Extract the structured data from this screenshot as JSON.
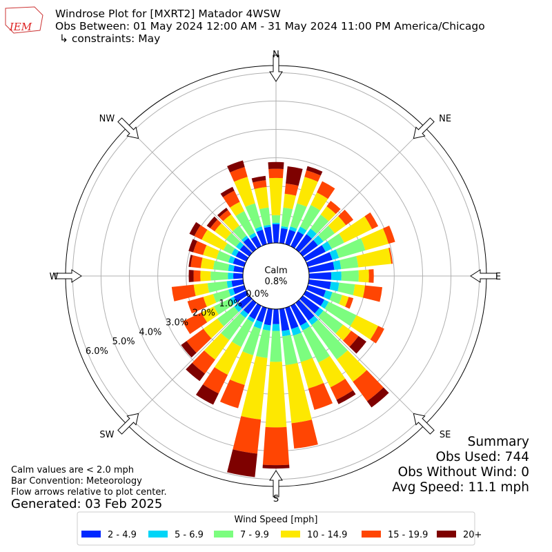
{
  "chart_data": {
    "type": "windrose",
    "logo_text": "IEM",
    "title": "Windrose Plot for [MXRT2] Matador 4WSW",
    "subtitle": "Obs Between: 01 May 2024 12:00 AM - 31 May 2024 11:00 PM America/Chicago",
    "constraints": "↳ constraints: May",
    "calm_label": "Calm",
    "calm_value": "0.8%",
    "notes": [
      "Calm values are < 2.0 mph",
      "Bar Convention: Meteorology",
      "Flow arrows relative to plot center."
    ],
    "generated": "Generated: 03 Feb 2025",
    "summary": [
      "Summary",
      "Obs Used: 744",
      "Obs Without Wind: 0",
      "Avg Speed: 11.1 mph"
    ],
    "legend_title": "Wind Speed [mph]",
    "x": [
      0,
      10,
      20,
      30,
      40,
      50,
      60,
      70,
      80,
      90,
      100,
      110,
      120,
      130,
      140,
      150,
      160,
      170,
      180,
      190,
      200,
      210,
      220,
      230,
      240,
      250,
      260,
      270,
      280,
      290,
      300,
      310,
      320,
      330,
      340,
      350
    ],
    "xticks": [
      {
        "value": 0,
        "label": "N"
      },
      {
        "value": 45,
        "label": "NE"
      },
      {
        "value": 90,
        "label": "E"
      },
      {
        "value": 135,
        "label": "SE"
      },
      {
        "value": 180,
        "label": "S"
      },
      {
        "value": 225,
        "label": "SW"
      },
      {
        "value": 270,
        "label": "W"
      },
      {
        "value": 315,
        "label": "NW"
      }
    ],
    "ylim": [
      0,
      6.25
    ],
    "yticks": [
      {
        "value": 0,
        "label": "0.0%"
      },
      {
        "value": 1,
        "label": "1.0%"
      },
      {
        "value": 2,
        "label": "2.0%"
      },
      {
        "value": 3,
        "label": "3.0%"
      },
      {
        "value": 4,
        "label": "4.0%"
      },
      {
        "value": 5,
        "label": "5.0%"
      },
      {
        "value": 6,
        "label": "6.0%"
      }
    ],
    "grid": true,
    "series": [
      {
        "name": "2 - 4.9",
        "color": "#0028ff",
        "values": [
          0.66,
          0.53,
          0.53,
          0.58,
          0.66,
          0.66,
          0.78,
          0.9,
          0.9,
          0.78,
          0.78,
          0.66,
          0.73,
          0.73,
          0.78,
          0.78,
          0.78,
          0.78,
          0.53,
          0.58,
          0.53,
          0.53,
          0.49,
          0.49,
          0.49,
          0.41,
          0.41,
          0.34,
          0.34,
          0.41,
          0.41,
          0.41,
          0.49,
          0.41,
          0.53,
          0.58
        ]
      },
      {
        "name": "5 - 6.9",
        "color": "#00d5f7",
        "values": [
          0.05,
          0.07,
          0.12,
          0.19,
          0.24,
          0.24,
          0.24,
          0.24,
          0.24,
          0.36,
          0.29,
          0.24,
          0.17,
          0.17,
          0.19,
          0.19,
          0.24,
          0.19,
          0.24,
          0.19,
          0.24,
          0.12,
          0.17,
          0.17,
          0.17,
          0.17,
          0.17,
          0.19,
          0.19,
          0.17,
          0.17,
          0.17,
          0.1,
          0.12,
          0.12,
          0.07
        ]
      },
      {
        "name": "7 - 9.9",
        "color": "#7cfd7f",
        "values": [
          0.27,
          0.66,
          0.85,
          0.85,
          0.61,
          0.49,
          0.49,
          0.97,
          0.61,
          0.61,
          0.56,
          0.36,
          1.09,
          0.85,
          1.5,
          1.26,
          0.97,
          1.02,
          1.09,
          0.97,
          0.97,
          0.97,
          0.97,
          0.73,
          0.61,
          0.56,
          0.68,
          0.61,
          0.53,
          0.44,
          0.32,
          0.44,
          0.44,
          0.85,
          0.85,
          0.61
        ]
      },
      {
        "name": "10 - 14.9",
        "color": "#fde801",
        "values": [
          1.31,
          0.49,
          0.97,
          0.49,
          0.36,
          0.49,
          1.09,
          0.85,
          1.17,
          0.36,
          0.36,
          0.24,
          0.85,
          0.36,
          0.97,
          0.97,
          0.97,
          2.06,
          2.31,
          2.18,
          1.09,
          1.09,
          0.85,
          0.61,
          0.49,
          0.36,
          0.49,
          0.36,
          0.44,
          0.49,
          0.85,
          0.49,
          0.49,
          0.36,
          0.97,
          0.73
        ]
      },
      {
        "name": "15 - 19.9",
        "color": "#ff4503",
        "values": [
          0.32,
          0.36,
          0.24,
          0.44,
          0.24,
          0.32,
          0.24,
          0.24,
          0.05,
          0.17,
          0.61,
          0.17,
          0.24,
          0.32,
          0.85,
          0.49,
          0.78,
          0.9,
          1.33,
          1.21,
          0.85,
          0.73,
          0.61,
          0.73,
          0.73,
          0.58,
          0.78,
          0.24,
          0.36,
          0.36,
          0.29,
          0.19,
          0.19,
          0.44,
          0.36,
          0.24
        ]
      },
      {
        "name": "20+",
        "color": "#7e0100",
        "values": [
          0.24,
          0.61,
          0.15,
          0,
          0,
          0,
          0,
          0,
          0,
          0,
          0,
          0,
          0,
          0.34,
          0.27,
          0.17,
          0,
          0,
          0.12,
          0.83,
          0,
          0.44,
          0.32,
          0.24,
          0,
          0,
          0,
          0.17,
          0.07,
          0.17,
          0.19,
          0.15,
          0.1,
          0.15,
          0.24,
          0.15
        ]
      }
    ]
  }
}
